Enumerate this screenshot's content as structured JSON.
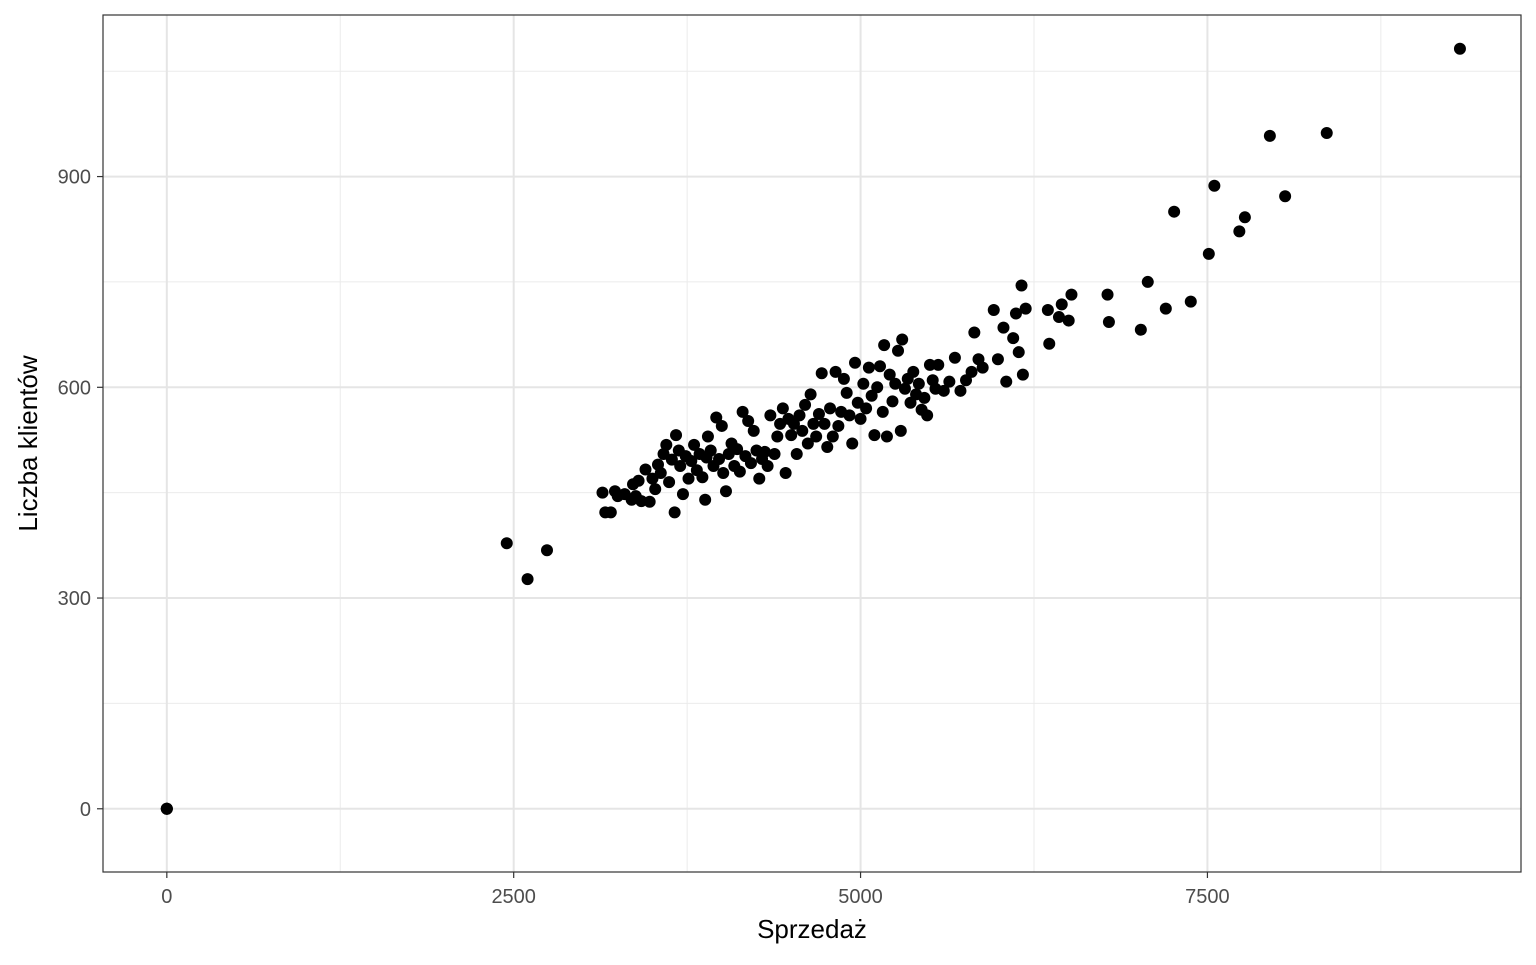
{
  "chart_data": {
    "type": "scatter",
    "title": "",
    "xlabel": "Sprzedaż",
    "ylabel": "Liczba klientów",
    "xlim": [
      -460,
      9760
    ],
    "ylim": [
      -90,
      1130
    ],
    "x_ticks": [
      0,
      2500,
      5000,
      7500
    ],
    "x_minor": [
      1250,
      3750,
      6250,
      8750
    ],
    "y_ticks": [
      0,
      300,
      600,
      900
    ],
    "y_minor": [
      150,
      450,
      750,
      1050
    ],
    "grid": true,
    "legend": "none",
    "point_color": "#000000",
    "points": [
      [
        0,
        0
      ],
      [
        0,
        0
      ],
      [
        0,
        0
      ],
      [
        2450,
        378
      ],
      [
        2600,
        327
      ],
      [
        2740,
        368
      ],
      [
        3140,
        450
      ],
      [
        3160,
        422
      ],
      [
        3200,
        422
      ],
      [
        3230,
        452
      ],
      [
        3250,
        445
      ],
      [
        3300,
        448
      ],
      [
        3350,
        440
      ],
      [
        3360,
        462
      ],
      [
        3380,
        445
      ],
      [
        3400,
        467
      ],
      [
        3420,
        438
      ],
      [
        3450,
        483
      ],
      [
        3480,
        437
      ],
      [
        3500,
        470
      ],
      [
        3520,
        455
      ],
      [
        3540,
        490
      ],
      [
        3560,
        478
      ],
      [
        3580,
        505
      ],
      [
        3600,
        518
      ],
      [
        3620,
        465
      ],
      [
        3640,
        497
      ],
      [
        3660,
        422
      ],
      [
        3670,
        532
      ],
      [
        3690,
        510
      ],
      [
        3700,
        488
      ],
      [
        3720,
        448
      ],
      [
        3740,
        502
      ],
      [
        3760,
        470
      ],
      [
        3780,
        495
      ],
      [
        3800,
        518
      ],
      [
        3820,
        482
      ],
      [
        3840,
        505
      ],
      [
        3860,
        472
      ],
      [
        3880,
        440
      ],
      [
        3890,
        500
      ],
      [
        3900,
        530
      ],
      [
        3920,
        510
      ],
      [
        3940,
        488
      ],
      [
        3960,
        557
      ],
      [
        3980,
        498
      ],
      [
        4000,
        545
      ],
      [
        4010,
        478
      ],
      [
        4030,
        452
      ],
      [
        4050,
        505
      ],
      [
        4070,
        520
      ],
      [
        4090,
        488
      ],
      [
        4110,
        512
      ],
      [
        4130,
        480
      ],
      [
        4150,
        565
      ],
      [
        4170,
        502
      ],
      [
        4190,
        552
      ],
      [
        4210,
        492
      ],
      [
        4230,
        538
      ],
      [
        4250,
        510
      ],
      [
        4270,
        470
      ],
      [
        4290,
        498
      ],
      [
        4310,
        508
      ],
      [
        4330,
        488
      ],
      [
        4350,
        560
      ],
      [
        4380,
        505
      ],
      [
        4400,
        530
      ],
      [
        4420,
        548
      ],
      [
        4440,
        570
      ],
      [
        4460,
        478
      ],
      [
        4480,
        555
      ],
      [
        4500,
        532
      ],
      [
        4520,
        548
      ],
      [
        4540,
        505
      ],
      [
        4560,
        560
      ],
      [
        4580,
        538
      ],
      [
        4600,
        575
      ],
      [
        4620,
        520
      ],
      [
        4640,
        590
      ],
      [
        4660,
        548
      ],
      [
        4680,
        530
      ],
      [
        4700,
        562
      ],
      [
        4720,
        620
      ],
      [
        4740,
        548
      ],
      [
        4760,
        515
      ],
      [
        4780,
        570
      ],
      [
        4800,
        530
      ],
      [
        4820,
        622
      ],
      [
        4840,
        545
      ],
      [
        4860,
        565
      ],
      [
        4880,
        612
      ],
      [
        4900,
        592
      ],
      [
        4920,
        560
      ],
      [
        4940,
        520
      ],
      [
        4960,
        635
      ],
      [
        4980,
        578
      ],
      [
        5000,
        555
      ],
      [
        5020,
        605
      ],
      [
        5040,
        570
      ],
      [
        5060,
        628
      ],
      [
        5080,
        588
      ],
      [
        5100,
        532
      ],
      [
        5120,
        600
      ],
      [
        5140,
        630
      ],
      [
        5160,
        565
      ],
      [
        5170,
        660
      ],
      [
        5190,
        530
      ],
      [
        5210,
        618
      ],
      [
        5230,
        580
      ],
      [
        5250,
        605
      ],
      [
        5270,
        652
      ],
      [
        5290,
        538
      ],
      [
        5300,
        668
      ],
      [
        5320,
        598
      ],
      [
        5340,
        612
      ],
      [
        5360,
        578
      ],
      [
        5380,
        622
      ],
      [
        5400,
        590
      ],
      [
        5420,
        605
      ],
      [
        5440,
        568
      ],
      [
        5460,
        585
      ],
      [
        5480,
        560
      ],
      [
        5500,
        632
      ],
      [
        5520,
        610
      ],
      [
        5540,
        598
      ],
      [
        5560,
        632
      ],
      [
        5600,
        595
      ],
      [
        5640,
        608
      ],
      [
        5680,
        642
      ],
      [
        5720,
        595
      ],
      [
        5760,
        610
      ],
      [
        5800,
        622
      ],
      [
        5820,
        678
      ],
      [
        5850,
        640
      ],
      [
        5880,
        628
      ],
      [
        5960,
        710
      ],
      [
        5990,
        640
      ],
      [
        6030,
        685
      ],
      [
        6050,
        608
      ],
      [
        6100,
        670
      ],
      [
        6120,
        705
      ],
      [
        6140,
        650
      ],
      [
        6160,
        745
      ],
      [
        6170,
        618
      ],
      [
        6190,
        712
      ],
      [
        6350,
        710
      ],
      [
        6360,
        662
      ],
      [
        6430,
        700
      ],
      [
        6450,
        718
      ],
      [
        6500,
        695
      ],
      [
        6520,
        732
      ],
      [
        6780,
        732
      ],
      [
        6790,
        693
      ],
      [
        7020,
        682
      ],
      [
        7070,
        750
      ],
      [
        7200,
        712
      ],
      [
        7260,
        850
      ],
      [
        7380,
        722
      ],
      [
        7510,
        790
      ],
      [
        7550,
        887
      ],
      [
        7730,
        822
      ],
      [
        7770,
        842
      ],
      [
        7950,
        958
      ],
      [
        8060,
        872
      ],
      [
        8360,
        962
      ],
      [
        9320,
        1082
      ]
    ]
  }
}
